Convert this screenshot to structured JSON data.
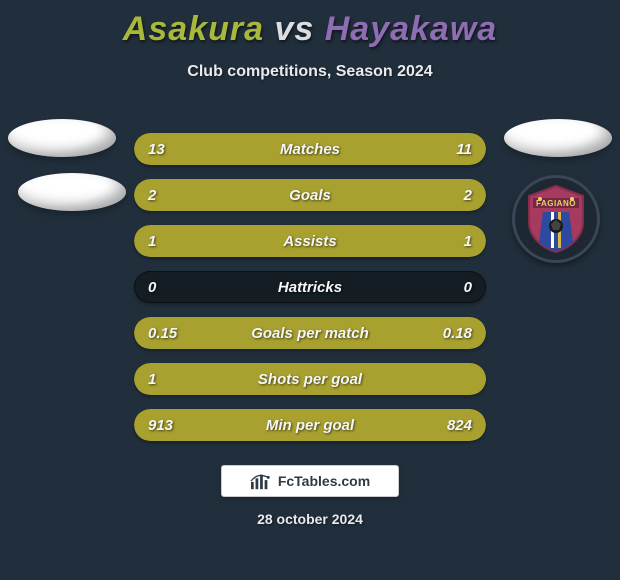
{
  "colors": {
    "background": "#212f3c",
    "player1_accent": "#a8b83a",
    "player2_accent": "#8e6db3",
    "vs_color": "#dadee2",
    "bar_fill": "#a8a02f",
    "bar_track": "#141c24",
    "text": "#f5f6f7"
  },
  "title": {
    "player1": "Asakura",
    "vs": "vs",
    "player2": "Hayakawa",
    "fontsize": 34
  },
  "subtitle": "Club competitions, Season 2024",
  "stats": [
    {
      "label": "Matches",
      "left_value": "13",
      "right_value": "11",
      "left_fill_pct": 55,
      "right_fill_pct": 45
    },
    {
      "label": "Goals",
      "left_value": "2",
      "right_value": "2",
      "left_fill_pct": 50,
      "right_fill_pct": 50
    },
    {
      "label": "Assists",
      "left_value": "1",
      "right_value": "1",
      "left_fill_pct": 50,
      "right_fill_pct": 50
    },
    {
      "label": "Hattricks",
      "left_value": "0",
      "right_value": "0",
      "left_fill_pct": 0,
      "right_fill_pct": 0
    },
    {
      "label": "Goals per match",
      "left_value": "0.15",
      "right_value": "0.18",
      "left_fill_pct": 45,
      "right_fill_pct": 55
    },
    {
      "label": "Shots per goal",
      "left_value": "1",
      "right_value": "",
      "left_fill_pct": 100,
      "right_fill_pct": 0
    },
    {
      "label": "Min per goal",
      "left_value": "913",
      "right_value": "824",
      "left_fill_pct": 52,
      "right_fill_pct": 48
    }
  ],
  "footer_brand": "FcTables.com",
  "date_text": "28 october 2024",
  "crest": {
    "text_top": "FAGIANO",
    "bg": "#a73a5f",
    "stripe1": "#2b4aa0",
    "stripe2": "#ffffff",
    "stripe3": "#d7b64a"
  }
}
